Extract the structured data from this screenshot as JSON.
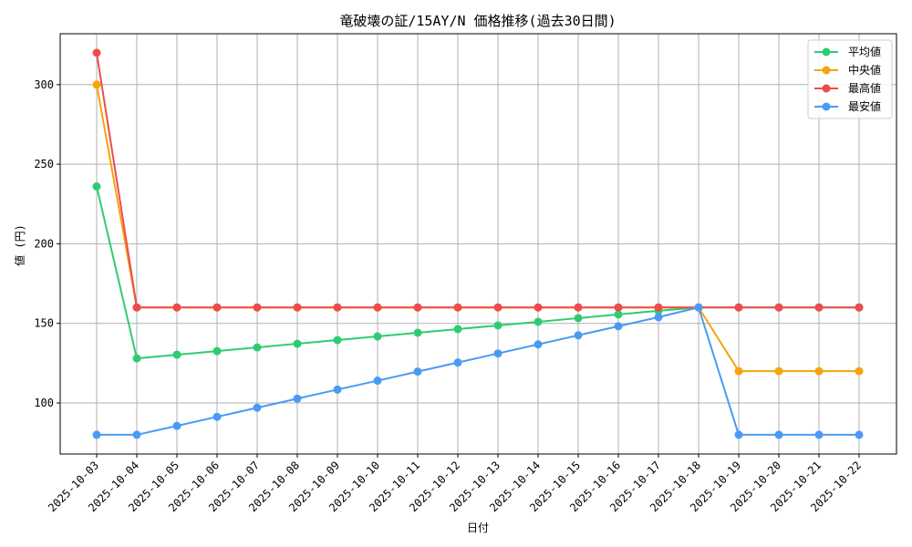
{
  "chart_data": {
    "type": "line",
    "title": "竜破壊の証/15AY/N 価格推移(過去30日間)",
    "xlabel": "日付",
    "ylabel": "値 (円)",
    "x": [
      "2025-10-03",
      "2025-10-04",
      "2025-10-05",
      "2025-10-06",
      "2025-10-07",
      "2025-10-08",
      "2025-10-09",
      "2025-10-10",
      "2025-10-11",
      "2025-10-12",
      "2025-10-13",
      "2025-10-14",
      "2025-10-15",
      "2025-10-16",
      "2025-10-17",
      "2025-10-18",
      "2025-10-19",
      "2025-10-20",
      "2025-10-21",
      "2025-10-22"
    ],
    "yticks": [
      100,
      150,
      200,
      250,
      300
    ],
    "ylim": [
      67,
      332
    ],
    "grid": true,
    "legend_position": "top-right",
    "series": [
      {
        "name": "平均値",
        "color": "#2ecc71",
        "values": [
          236,
          128,
          130.3,
          132.6,
          134.9,
          137.2,
          139.5,
          141.8,
          144.1,
          146.4,
          148.7,
          151,
          153.3,
          155.6,
          157.9,
          160,
          160,
          160,
          160,
          160
        ]
      },
      {
        "name": "中央値",
        "color": "#f5a40c",
        "values": [
          300,
          160,
          160,
          160,
          160,
          160,
          160,
          160,
          160,
          160,
          160,
          160,
          160,
          160,
          160,
          160,
          120,
          120,
          120,
          120
        ]
      },
      {
        "name": "最高値",
        "color": "#ef4b4b",
        "values": [
          320,
          160,
          160,
          160,
          160,
          160,
          160,
          160,
          160,
          160,
          160,
          160,
          160,
          160,
          160,
          160,
          160,
          160,
          160,
          160
        ]
      },
      {
        "name": "最安値",
        "color": "#4a9af5",
        "values": [
          80,
          80,
          85.6,
          91.3,
          97,
          102.7,
          108.4,
          114,
          119.7,
          125.4,
          131.1,
          136.8,
          142.5,
          148.2,
          153.9,
          160,
          80,
          80,
          80,
          80
        ]
      }
    ]
  }
}
